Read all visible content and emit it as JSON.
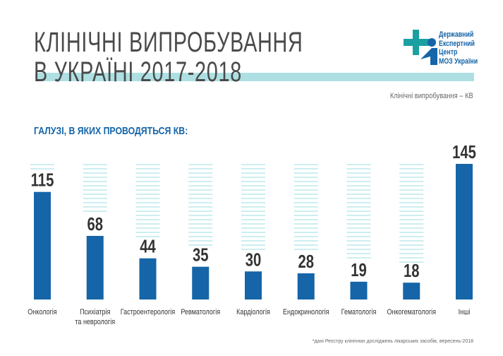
{
  "header": {
    "title_line1": "КЛІНІЧНІ ВИПРОБУВАННЯ",
    "title_line2": "В УКРАЇНІ 2017-2018",
    "subtitle": "Клінічні випробування – КВ"
  },
  "logo": {
    "lines": [
      "Державний",
      "Експертний",
      "Центр",
      "МОЗ України"
    ]
  },
  "section_title": "ГАЛУЗІ, В ЯКИХ ПРОВОДЯТЬСЯ КВ:",
  "footnote": "*дані Реєстру клінічних досліджень лікарських засобів, вересень-2018",
  "colors": {
    "bar": "#1565a8",
    "stripe": "#cdeef0",
    "title": "#4a4a4a",
    "teal": "#1aa0a0"
  },
  "chart_data": {
    "type": "bar",
    "title": "ГАЛУЗІ, В ЯКИХ ПРОВОДЯТЬСЯ КВ:",
    "categories": [
      [
        "Онкологія"
      ],
      [
        "Психіатрія",
        "та неврологія"
      ],
      [
        "Гастроентерологія"
      ],
      [
        "Ревматологія"
      ],
      [
        "Кардіологія"
      ],
      [
        "Ендокринологія"
      ],
      [
        "Гематологія"
      ],
      [
        "Онкогематологія"
      ],
      [
        "Інші"
      ]
    ],
    "values": [
      115,
      68,
      44,
      35,
      30,
      28,
      19,
      18,
      145
    ],
    "ylim": [
      0,
      145
    ]
  }
}
